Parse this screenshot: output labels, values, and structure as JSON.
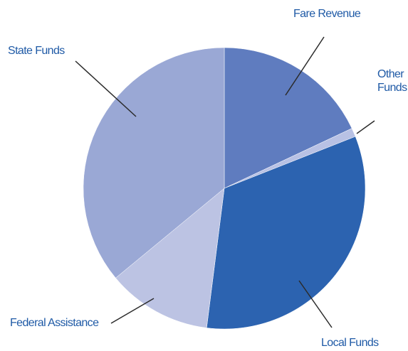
{
  "chart_data": {
    "type": "pie",
    "categories": [
      "Fare Revenue",
      "Other Funds",
      "Local Funds",
      "Federal Assistance",
      "State Funds"
    ],
    "values": [
      18,
      1,
      33,
      12,
      36
    ],
    "colors": [
      "#5f7cbf",
      "#b8c1e4",
      "#2c63b0",
      "#bcc3e3",
      "#9aa8d5"
    ]
  }
}
